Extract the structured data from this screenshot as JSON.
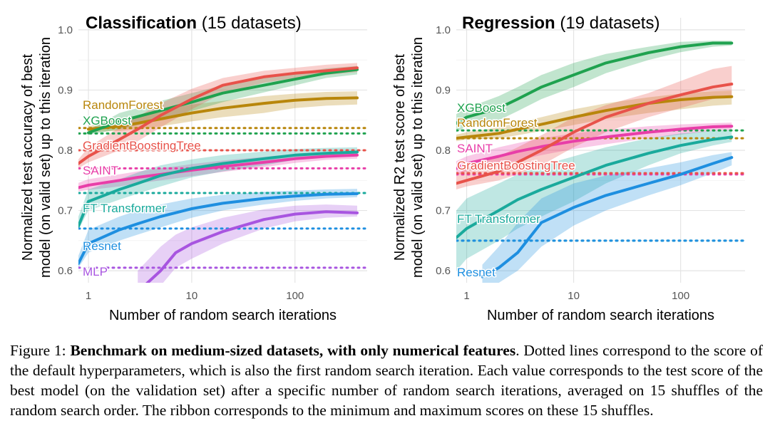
{
  "chart_data": [
    {
      "type": "line",
      "title_bold": "Classification",
      "title_rest": "(15 datasets)",
      "xlabel": "Number of random search iterations",
      "ylabel_line1": "Normalized test accuracy of best",
      "ylabel_line2": "model (on valid set) up to this iteration",
      "x_scale": "log",
      "xlim": [
        0.8,
        500
      ],
      "ylim": [
        0.58,
        1.02
      ],
      "x_ticks": [
        1,
        10,
        100
      ],
      "x_tick_labels": [
        "1",
        "10",
        "100"
      ],
      "y_ticks": [
        0.6,
        0.7,
        0.8,
        0.9,
        1.0
      ],
      "y_tick_labels": [
        "0.6",
        "0.7",
        "0.8",
        "0.9",
        "1.0"
      ],
      "grid": true,
      "legend": "direct labels at left",
      "series": [
        {
          "name": "RandomForest",
          "color": "#b8860b",
          "default": 0.837,
          "x": [
            1,
            2,
            3,
            5,
            10,
            20,
            50,
            100,
            200,
            400
          ],
          "y": [
            0.835,
            0.84,
            0.845,
            0.852,
            0.862,
            0.87,
            0.878,
            0.883,
            0.886,
            0.887
          ],
          "ymin": [
            0.83,
            0.832,
            0.835,
            0.84,
            0.848,
            0.855,
            0.862,
            0.87,
            0.874,
            0.876
          ],
          "ymax": [
            0.842,
            0.852,
            0.858,
            0.866,
            0.876,
            0.882,
            0.89,
            0.894,
            0.897,
            0.898
          ]
        },
        {
          "name": "XGBoost",
          "color": "#1fa24f",
          "default": 0.828,
          "x": [
            1,
            2,
            3,
            5,
            10,
            20,
            50,
            100,
            200,
            400
          ],
          "y": [
            0.829,
            0.848,
            0.856,
            0.866,
            0.88,
            0.895,
            0.908,
            0.918,
            0.928,
            0.934
          ],
          "ymin": [
            0.826,
            0.835,
            0.842,
            0.852,
            0.865,
            0.88,
            0.896,
            0.908,
            0.92,
            0.926
          ],
          "ymax": [
            0.834,
            0.862,
            0.87,
            0.882,
            0.895,
            0.908,
            0.92,
            0.928,
            0.936,
            0.94
          ]
        },
        {
          "name": "GradientBoostingTree",
          "color": "#e8524a",
          "default": 0.8,
          "x": [
            0.8,
            1,
            2,
            3,
            5,
            10,
            20,
            50,
            100,
            200,
            400
          ],
          "y": [
            0.778,
            0.79,
            0.818,
            0.835,
            0.858,
            0.885,
            0.908,
            0.922,
            0.928,
            0.932,
            0.937
          ],
          "ymin": [
            0.77,
            0.78,
            0.8,
            0.815,
            0.838,
            0.868,
            0.895,
            0.912,
            0.92,
            0.925,
            0.93
          ],
          "ymax": [
            0.785,
            0.805,
            0.838,
            0.856,
            0.878,
            0.902,
            0.92,
            0.932,
            0.937,
            0.942,
            0.945
          ]
        },
        {
          "name": "SAINT",
          "color": "#e83ea8",
          "default": 0.77,
          "x": [
            0.8,
            1,
            2,
            3,
            5,
            10,
            20,
            50,
            100,
            200,
            400
          ],
          "y": [
            0.738,
            0.742,
            0.75,
            0.755,
            0.76,
            0.767,
            0.773,
            0.78,
            0.786,
            0.79,
            0.792
          ],
          "ymin": [
            0.732,
            0.734,
            0.74,
            0.745,
            0.75,
            0.757,
            0.764,
            0.772,
            0.779,
            0.784,
            0.786
          ],
          "ymax": [
            0.746,
            0.752,
            0.76,
            0.765,
            0.77,
            0.777,
            0.783,
            0.789,
            0.794,
            0.797,
            0.798
          ]
        },
        {
          "name": "FT Transformer",
          "color": "#1aaa9c",
          "default": 0.729,
          "x": [
            0.8,
            1,
            2,
            3,
            5,
            10,
            20,
            50,
            100,
            200,
            400
          ],
          "y": [
            0.674,
            0.715,
            0.735,
            0.745,
            0.758,
            0.77,
            0.778,
            0.786,
            0.792,
            0.795,
            0.797
          ],
          "ymin": [
            0.668,
            0.7,
            0.718,
            0.728,
            0.74,
            0.755,
            0.765,
            0.775,
            0.784,
            0.788,
            0.791
          ],
          "ymax": [
            0.69,
            0.735,
            0.752,
            0.763,
            0.775,
            0.785,
            0.792,
            0.798,
            0.802,
            0.804,
            0.805
          ]
        },
        {
          "name": "Resnet",
          "color": "#1e8fe0",
          "default": 0.67,
          "x": [
            0.8,
            1,
            2,
            3,
            5,
            10,
            20,
            50,
            100,
            200,
            400
          ],
          "y": [
            0.612,
            0.645,
            0.668,
            0.678,
            0.69,
            0.703,
            0.712,
            0.72,
            0.724,
            0.727,
            0.728
          ],
          "ymin": [
            0.605,
            0.63,
            0.65,
            0.66,
            0.672,
            0.688,
            0.7,
            0.71,
            0.716,
            0.72,
            0.722
          ],
          "ymax": [
            0.625,
            0.668,
            0.69,
            0.7,
            0.71,
            0.72,
            0.726,
            0.731,
            0.733,
            0.735,
            0.736
          ]
        },
        {
          "name": "MLP",
          "color": "#a855e0",
          "default": 0.605,
          "x": [
            3,
            5,
            7,
            10,
            20,
            50,
            100,
            200,
            400
          ],
          "y": [
            0.565,
            0.6,
            0.63,
            0.645,
            0.665,
            0.685,
            0.694,
            0.698,
            0.696
          ],
          "ymin": [
            0.54,
            0.575,
            0.605,
            0.62,
            0.645,
            0.67,
            0.682,
            0.688,
            0.69
          ],
          "ymax": [
            0.6,
            0.64,
            0.66,
            0.672,
            0.688,
            0.702,
            0.708,
            0.71,
            0.708
          ]
        }
      ]
    },
    {
      "type": "line",
      "title_bold": "Regression",
      "title_rest": "(19 datasets)",
      "xlabel": "Number of random search iterations",
      "ylabel_line1": "Normalized R2 test score of best",
      "ylabel_line2": "model (on valid set) up to this iteration",
      "x_scale": "log",
      "xlim": [
        0.8,
        400
      ],
      "ylim": [
        0.58,
        1.02
      ],
      "x_ticks": [
        1,
        10,
        100
      ],
      "x_tick_labels": [
        "1",
        "10",
        "100"
      ],
      "y_ticks": [
        0.6,
        0.7,
        0.8,
        0.9,
        1.0
      ],
      "y_tick_labels": [
        "0.6",
        "0.7",
        "0.8",
        "0.9",
        "1.0"
      ],
      "grid": true,
      "legend": "direct labels at left",
      "series": [
        {
          "name": "XGBoost",
          "color": "#1fa24f",
          "default": 0.833,
          "x": [
            0.8,
            1,
            2,
            3,
            5,
            10,
            20,
            50,
            100,
            200,
            300
          ],
          "y": [
            0.845,
            0.855,
            0.87,
            0.885,
            0.905,
            0.925,
            0.945,
            0.962,
            0.972,
            0.978,
            0.978
          ],
          "ymin": [
            0.83,
            0.84,
            0.85,
            0.865,
            0.885,
            0.905,
            0.928,
            0.95,
            0.963,
            0.972,
            0.974
          ],
          "ymax": [
            0.86,
            0.87,
            0.89,
            0.905,
            0.925,
            0.945,
            0.96,
            0.972,
            0.98,
            0.982,
            0.982
          ]
        },
        {
          "name": "RandomForest",
          "color": "#b8860b",
          "default": 0.82,
          "x": [
            0.8,
            1,
            2,
            3,
            5,
            10,
            20,
            50,
            100,
            200,
            300
          ],
          "y": [
            0.82,
            0.822,
            0.828,
            0.835,
            0.843,
            0.855,
            0.866,
            0.878,
            0.884,
            0.888,
            0.889
          ],
          "ymin": [
            0.815,
            0.818,
            0.82,
            0.825,
            0.832,
            0.842,
            0.852,
            0.862,
            0.868,
            0.874,
            0.876
          ],
          "ymax": [
            0.826,
            0.83,
            0.838,
            0.846,
            0.855,
            0.868,
            0.878,
            0.888,
            0.894,
            0.898,
            0.899
          ]
        },
        {
          "name": "SAINT",
          "color": "#e83ea8",
          "default": 0.76,
          "x": [
            0.8,
            1,
            2,
            3,
            5,
            10,
            20,
            50,
            100,
            200,
            300
          ],
          "y": [
            0.77,
            0.778,
            0.79,
            0.798,
            0.806,
            0.815,
            0.822,
            0.83,
            0.835,
            0.839,
            0.84
          ],
          "ymin": [
            0.758,
            0.765,
            0.775,
            0.783,
            0.792,
            0.802,
            0.81,
            0.82,
            0.826,
            0.832,
            0.834
          ],
          "ymax": [
            0.782,
            0.79,
            0.805,
            0.812,
            0.82,
            0.828,
            0.834,
            0.84,
            0.843,
            0.845,
            0.846
          ]
        },
        {
          "name": "GradientBoostingTree",
          "color": "#e8524a",
          "default": 0.762,
          "x": [
            0.8,
            1,
            2,
            3,
            5,
            10,
            20,
            50,
            100,
            200,
            300
          ],
          "y": [
            0.745,
            0.75,
            0.765,
            0.78,
            0.8,
            0.83,
            0.855,
            0.878,
            0.892,
            0.905,
            0.91
          ],
          "ymin": [
            0.735,
            0.74,
            0.75,
            0.76,
            0.775,
            0.805,
            0.83,
            0.855,
            0.87,
            0.885,
            0.89
          ],
          "ymax": [
            0.76,
            0.77,
            0.79,
            0.805,
            0.825,
            0.855,
            0.875,
            0.895,
            0.915,
            0.935,
            0.94
          ]
        },
        {
          "name": "FT Transformer",
          "color": "#1aaa9c",
          "default": 0.65,
          "x": [
            0.8,
            1,
            2,
            3,
            5,
            10,
            20,
            50,
            100,
            200,
            300
          ],
          "y": [
            0.655,
            0.67,
            0.7,
            0.718,
            0.735,
            0.755,
            0.775,
            0.795,
            0.808,
            0.818,
            0.822
          ],
          "ymin": [
            0.6,
            0.62,
            0.65,
            0.67,
            0.69,
            0.715,
            0.745,
            0.775,
            0.795,
            0.808,
            0.814
          ],
          "ymax": [
            0.7,
            0.72,
            0.745,
            0.76,
            0.775,
            0.79,
            0.805,
            0.82,
            0.828,
            0.832,
            0.834
          ]
        },
        {
          "name": "Resnet",
          "color": "#1e8fe0",
          "default": 0.65,
          "x": [
            1.4,
            2,
            3,
            5,
            10,
            20,
            50,
            100,
            200,
            300
          ],
          "y": [
            0.59,
            0.605,
            0.63,
            0.68,
            0.705,
            0.725,
            0.745,
            0.76,
            0.778,
            0.788
          ],
          "ymin": [
            0.57,
            0.58,
            0.6,
            0.64,
            0.675,
            0.7,
            0.725,
            0.742,
            0.762,
            0.775
          ],
          "ymax": [
            0.61,
            0.64,
            0.68,
            0.72,
            0.745,
            0.758,
            0.77,
            0.78,
            0.792,
            0.797
          ]
        }
      ]
    }
  ],
  "caption": {
    "prefix": "Figure 1: ",
    "bold": "Benchmark on medium-sized datasets, with only numerical features",
    "rest": ". Dotted lines correspond to the score of the default hyperparameters, which is also the first random search iteration. Each value corresponds to the test score of the best model (on the validation set) after a specific number of random search iterations, averaged on 15 shuffles of the random search order. The ribbon corresponds to the minimum and maximum scores on these 15 shuffles."
  }
}
